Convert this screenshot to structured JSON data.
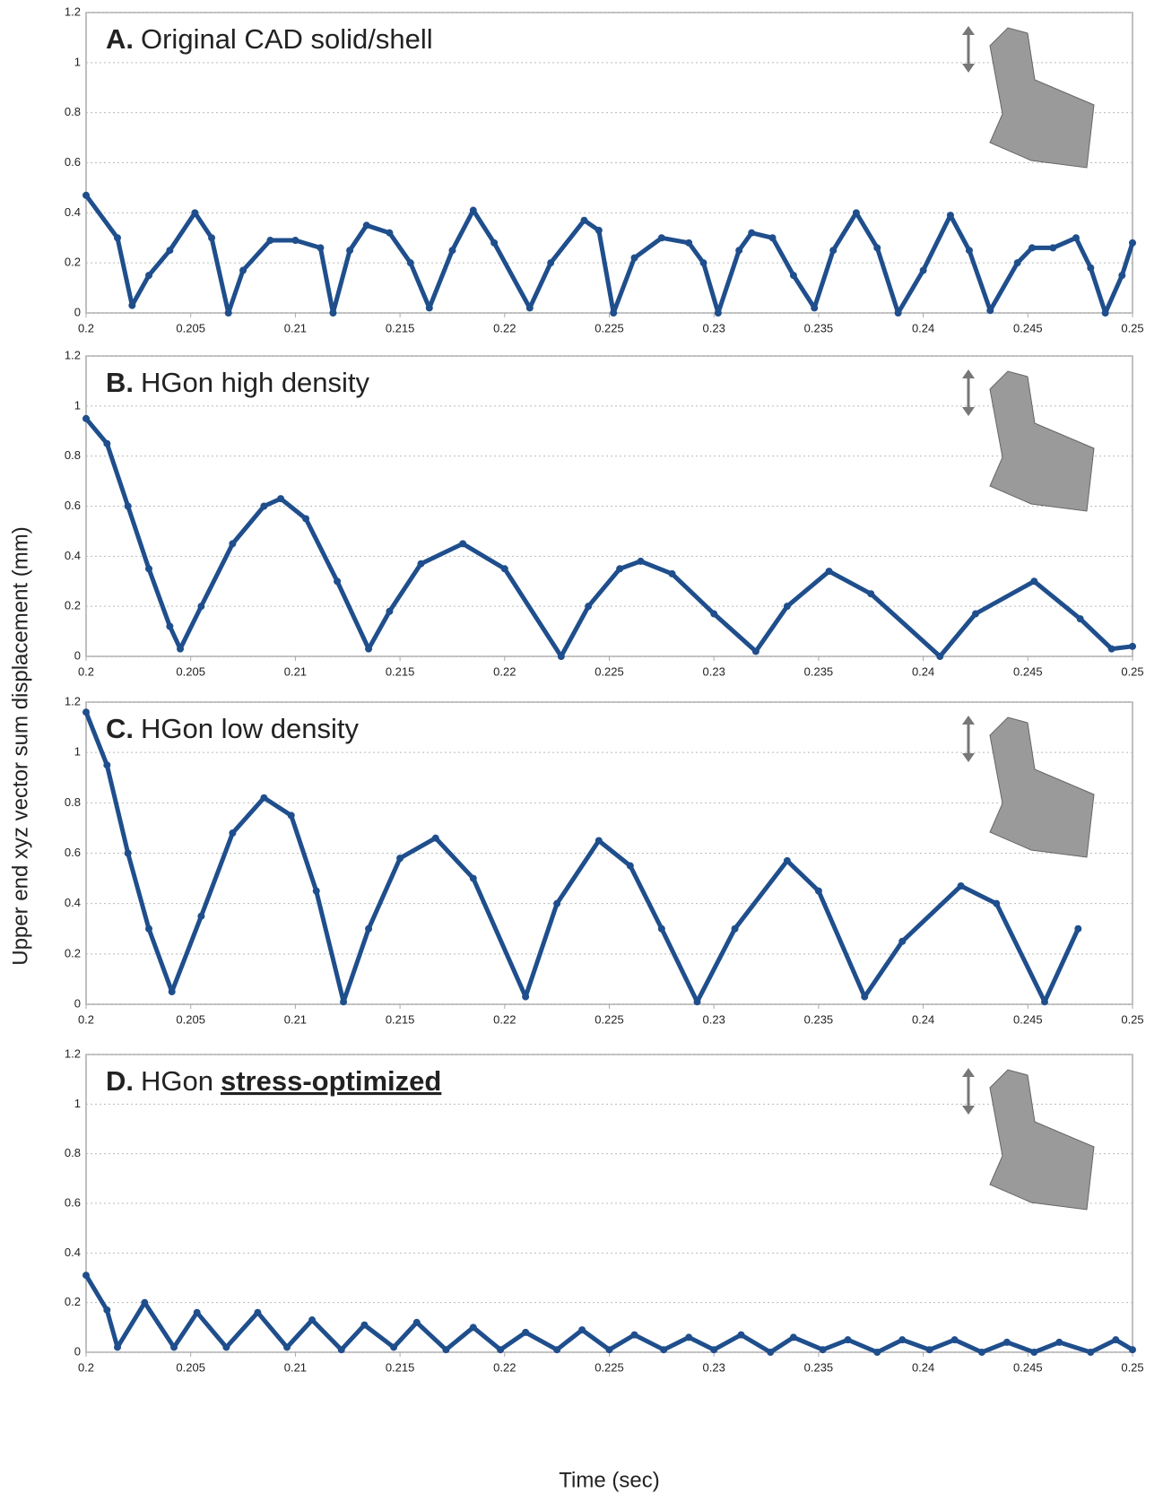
{
  "y_label": "Upper end xyz vector sum displacement (mm)",
  "x_label": "Time (sec)",
  "chart_data": [
    {
      "type": "line",
      "title": {
        "label": "A.",
        "text": "Original CAD solid/shell"
      },
      "color": "#1f4e8c",
      "xlim": [
        0.2,
        0.25
      ],
      "xticks": [
        0.2,
        0.205,
        0.21,
        0.215,
        0.22,
        0.225,
        0.23,
        0.235,
        0.24,
        0.245,
        0.25
      ],
      "ylim": [
        0,
        1.2
      ],
      "yticks": [
        0,
        0.2,
        0.4,
        0.6,
        0.8,
        1,
        1.2
      ],
      "grid": true,
      "x": [
        0.2,
        0.2015,
        0.2022,
        0.203,
        0.204,
        0.2052,
        0.206,
        0.2068,
        0.2075,
        0.2088,
        0.21,
        0.2112,
        0.2118,
        0.2126,
        0.2134,
        0.2145,
        0.2155,
        0.2164,
        0.2175,
        0.2185,
        0.2195,
        0.2212,
        0.2222,
        0.2238,
        0.2245,
        0.2252,
        0.2262,
        0.2275,
        0.2288,
        0.2295,
        0.2302,
        0.2312,
        0.2318,
        0.2328,
        0.2338,
        0.2348,
        0.2357,
        0.2368,
        0.2378,
        0.2388,
        0.24,
        0.2413,
        0.2422,
        0.2432,
        0.2445,
        0.2452,
        0.2462,
        0.2473,
        0.248,
        0.2487,
        0.2495,
        0.25
      ],
      "values": [
        0.47,
        0.3,
        0.03,
        0.15,
        0.25,
        0.4,
        0.3,
        0.0,
        0.17,
        0.29,
        0.29,
        0.26,
        0.0,
        0.25,
        0.35,
        0.32,
        0.2,
        0.02,
        0.25,
        0.41,
        0.28,
        0.02,
        0.2,
        0.37,
        0.33,
        0.0,
        0.22,
        0.3,
        0.28,
        0.2,
        0.0,
        0.25,
        0.32,
        0.3,
        0.15,
        0.02,
        0.25,
        0.4,
        0.26,
        0.0,
        0.17,
        0.39,
        0.25,
        0.01,
        0.2,
        0.26,
        0.26,
        0.3,
        0.18,
        0.0,
        0.15,
        0.28
      ]
    },
    {
      "type": "line",
      "title": {
        "label": "B.",
        "text": "HGon high density"
      },
      "color": "#1f4e8c",
      "xlim": [
        0.2,
        0.25
      ],
      "xticks": [
        0.2,
        0.205,
        0.21,
        0.215,
        0.22,
        0.225,
        0.23,
        0.235,
        0.24,
        0.245,
        0.25
      ],
      "ylim": [
        0,
        1.2
      ],
      "yticks": [
        0,
        0.2,
        0.4,
        0.6,
        0.8,
        1,
        1.2
      ],
      "grid": true,
      "x": [
        0.2,
        0.201,
        0.202,
        0.203,
        0.204,
        0.2045,
        0.2055,
        0.207,
        0.2085,
        0.2093,
        0.2105,
        0.212,
        0.2135,
        0.2145,
        0.216,
        0.218,
        0.22,
        0.2227,
        0.224,
        0.2255,
        0.2265,
        0.228,
        0.23,
        0.232,
        0.2335,
        0.2355,
        0.2375,
        0.2408,
        0.2425,
        0.2453,
        0.2475,
        0.249,
        0.25
      ],
      "values": [
        0.95,
        0.85,
        0.6,
        0.35,
        0.12,
        0.03,
        0.2,
        0.45,
        0.6,
        0.63,
        0.55,
        0.3,
        0.03,
        0.18,
        0.37,
        0.45,
        0.35,
        0.0,
        0.2,
        0.35,
        0.38,
        0.33,
        0.17,
        0.02,
        0.2,
        0.34,
        0.25,
        0.0,
        0.17,
        0.3,
        0.15,
        0.03,
        0.04
      ]
    },
    {
      "type": "line",
      "title": {
        "label": "C.",
        "text": "HGon low density"
      },
      "color": "#1f4e8c",
      "xlim": [
        0.2,
        0.25
      ],
      "xticks": [
        0.2,
        0.205,
        0.21,
        0.215,
        0.22,
        0.225,
        0.23,
        0.235,
        0.24,
        0.245,
        0.25
      ],
      "ylim": [
        0,
        1.2
      ],
      "yticks": [
        0,
        0.2,
        0.4,
        0.6,
        0.8,
        1,
        1.2
      ],
      "grid": true,
      "x": [
        0.2,
        0.201,
        0.202,
        0.203,
        0.2041,
        0.2055,
        0.207,
        0.2085,
        0.2098,
        0.211,
        0.2123,
        0.2135,
        0.215,
        0.2167,
        0.2185,
        0.221,
        0.2225,
        0.2245,
        0.226,
        0.2275,
        0.2292,
        0.231,
        0.2335,
        0.235,
        0.2372,
        0.239,
        0.2418,
        0.2435,
        0.2458,
        0.2474
      ],
      "values": [
        1.16,
        0.95,
        0.6,
        0.3,
        0.05,
        0.35,
        0.68,
        0.82,
        0.75,
        0.45,
        0.01,
        0.3,
        0.58,
        0.66,
        0.5,
        0.03,
        0.4,
        0.65,
        0.55,
        0.3,
        0.01,
        0.3,
        0.57,
        0.45,
        0.03,
        0.25,
        0.47,
        0.4,
        0.01,
        0.3
      ]
    },
    {
      "type": "line",
      "title": {
        "label": "D.",
        "text": "HGon",
        "emphasis": "stress-optimized"
      },
      "color": "#1f4e8c",
      "xlim": [
        0.2,
        0.25
      ],
      "xticks": [
        0.2,
        0.205,
        0.21,
        0.215,
        0.22,
        0.225,
        0.23,
        0.235,
        0.24,
        0.245,
        0.25
      ],
      "ylim": [
        0,
        1.2
      ],
      "yticks": [
        0,
        0.2,
        0.4,
        0.6,
        0.8,
        1,
        1.2
      ],
      "grid": true,
      "x": [
        0.2,
        0.201,
        0.2015,
        0.2028,
        0.2042,
        0.2053,
        0.2067,
        0.2082,
        0.2096,
        0.2108,
        0.2122,
        0.2133,
        0.2147,
        0.2158,
        0.2172,
        0.2185,
        0.2198,
        0.221,
        0.2225,
        0.2237,
        0.225,
        0.2262,
        0.2276,
        0.2288,
        0.23,
        0.2313,
        0.2327,
        0.2338,
        0.2352,
        0.2364,
        0.2378,
        0.239,
        0.2403,
        0.2415,
        0.2428,
        0.244,
        0.2453,
        0.2465,
        0.248,
        0.2492,
        0.25
      ],
      "values": [
        0.31,
        0.17,
        0.02,
        0.2,
        0.02,
        0.16,
        0.02,
        0.16,
        0.02,
        0.13,
        0.01,
        0.11,
        0.02,
        0.12,
        0.01,
        0.1,
        0.01,
        0.08,
        0.01,
        0.09,
        0.01,
        0.07,
        0.01,
        0.06,
        0.01,
        0.07,
        0.0,
        0.06,
        0.01,
        0.05,
        0.0,
        0.05,
        0.01,
        0.05,
        0.0,
        0.04,
        0.0,
        0.04,
        0.0,
        0.05,
        0.01
      ]
    }
  ]
}
